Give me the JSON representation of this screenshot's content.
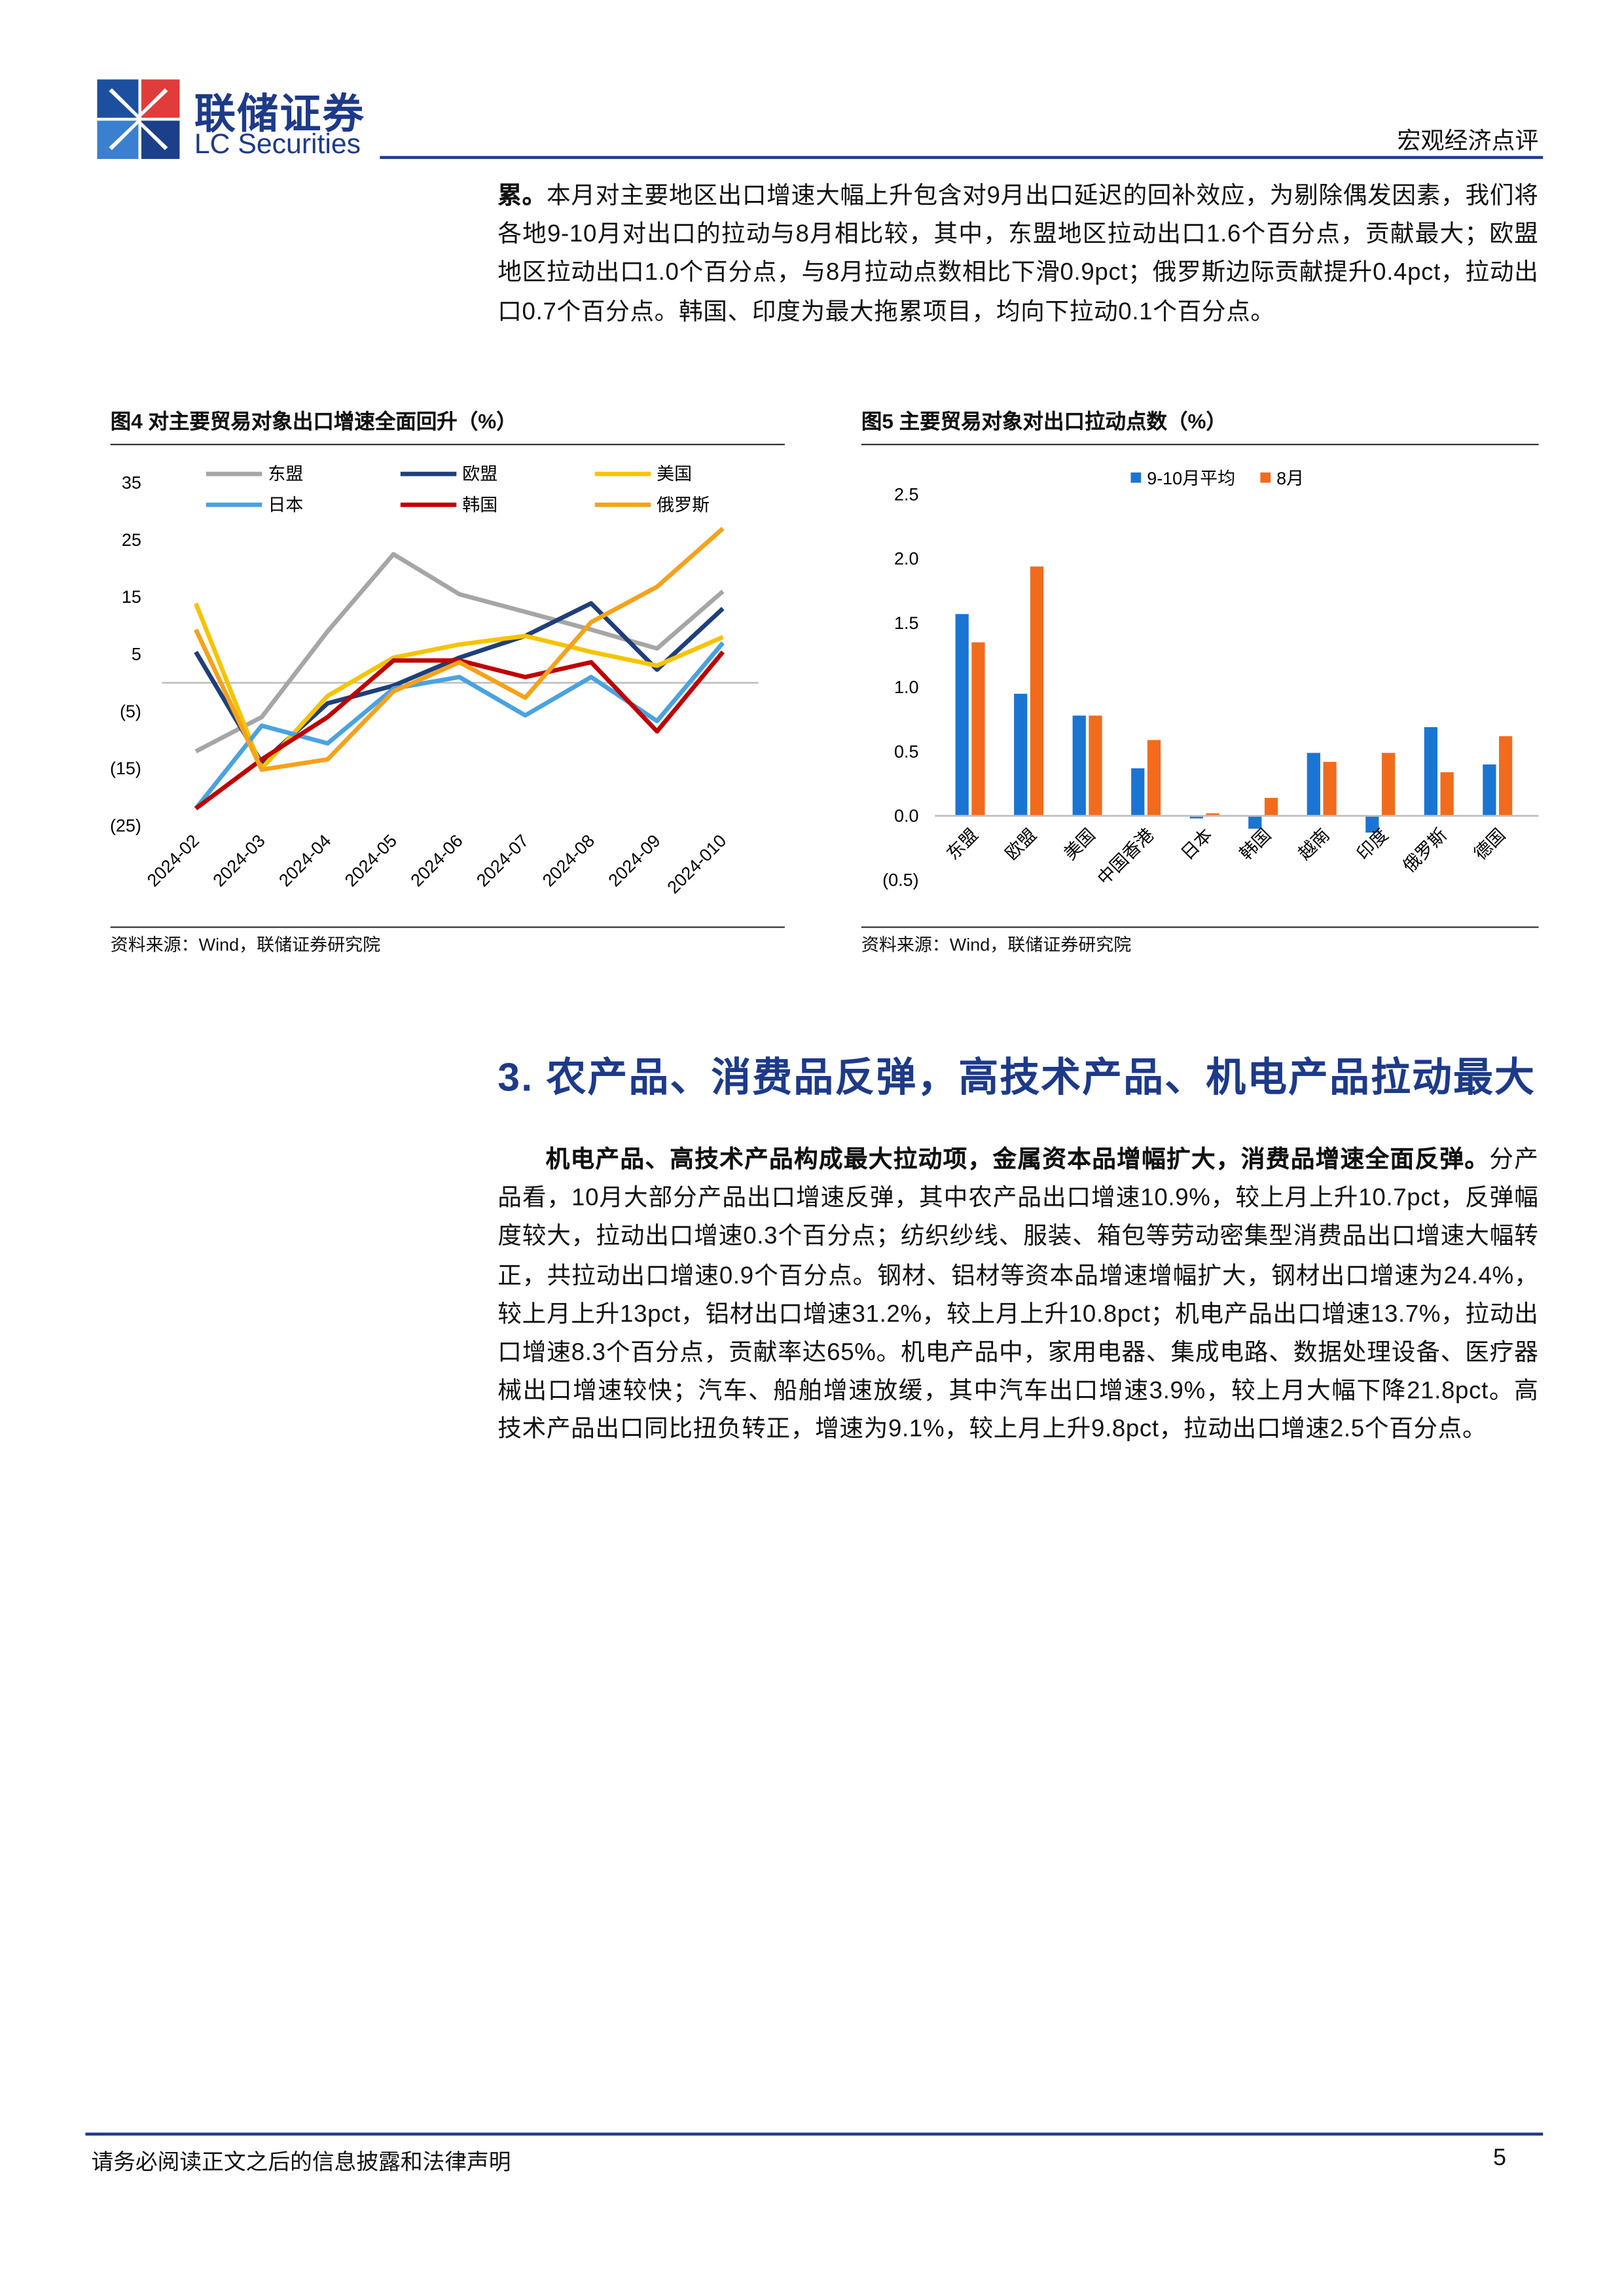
{
  "header": {
    "company_cn": "联储证券",
    "company_en": "LC Securities",
    "report_type": "宏观经济点评"
  },
  "paragraphs": [
    {
      "bold": "累。",
      "text": "本月对主要地区出口增速大幅上升包含对9月出口延迟的回补效应，为剔除偶发因素，我们将各地9-10月对出口的拉动与8月相比较，其中，东盟地区拉动出口1.6个百分点，贡献最大；欧盟地区拉动出口1.0个百分点，与8月拉动点数相比下滑0.9pct；俄罗斯边际贡献提升0.4pct，拉动出口0.7个百分点。韩国、印度为最大拖累项目，均向下拉动0.1个百分点。"
    },
    {
      "bold": "机电产品、高技术产品构成最大拉动项，金属资本品增幅扩大，消费品增速全面反弹。",
      "text": "分产品看，10月大部分产品出口增速反弹，其中农产品出口增速10.9%，较上月上升10.7pct，反弹幅度较大，拉动出口增速0.3个百分点；纺织纱线、服装、箱包等劳动密集型消费品出口增速大幅转正，共拉动出口增速0.9个百分点。钢材、铝材等资本品增速增幅扩大，钢材出口增速为24.4%，较上月上升13pct，铝材出口增速31.2%，较上月上升10.8pct；机电产品出口增速13.7%，拉动出口增速8.3个百分点，贡献率达65%。机电产品中，家用电器、集成电路、数据处理设备、医疗器械出口增速较快；汽车、船舶增速放缓，其中汽车出口增速3.9%，较上月大幅下降21.8pct。高技术产品出口同比扭负转正，增速为9.1%，较上月上升9.8pct，拉动出口增速2.5个百分点。"
    }
  ],
  "section_title": "3. 农产品、消费品反弹，高技术产品、机电产品拉动最大",
  "chart_data": [
    {
      "type": "line",
      "title": "图4  对主要贸易对象出口增速全面回升（%）",
      "source": "资料来源：Wind，联储证券研究院",
      "categories": [
        "2024-02",
        "2024-03",
        "2024-04",
        "2024-05",
        "2024-06",
        "2024-07",
        "2024-08",
        "2024-09",
        "2024-010"
      ],
      "ylim": [
        -25,
        35
      ],
      "yticks": [
        35,
        25,
        15,
        5,
        {
          "value": -5,
          "label": "(5)"
        },
        {
          "value": -15,
          "label": "(15)"
        },
        {
          "value": -25,
          "label": "(25)"
        }
      ],
      "series": [
        {
          "name": "东盟",
          "color": "#a6a6a6",
          "values": [
            -12,
            -6,
            9,
            22.5,
            15.5,
            12.4,
            9.3,
            6,
            16
          ]
        },
        {
          "name": "欧盟",
          "color": "#1f3f7a",
          "values": [
            5.4,
            -14,
            -3.6,
            -0.5,
            4.4,
            8.2,
            13.9,
            2.3,
            13
          ]
        },
        {
          "name": "美国",
          "color": "#f5c400",
          "values": [
            13.9,
            -15,
            -2.3,
            4.4,
            6.7,
            8.2,
            5.4,
            3,
            8
          ]
        },
        {
          "name": "日本",
          "color": "#4aa3df",
          "values": [
            -22,
            -7.5,
            -10.6,
            -1,
            1,
            -5.7,
            1,
            -6.7,
            7
          ]
        },
        {
          "name": "韩国",
          "color": "#c00000",
          "values": [
            -22,
            -13.4,
            -6,
            3.9,
            3.9,
            1,
            3.6,
            -8.5,
            5.4
          ]
        },
        {
          "name": "俄罗斯",
          "color": "#f5a21b",
          "values": [
            9.3,
            -15.2,
            -13.4,
            -1.5,
            3.6,
            -2.6,
            10.6,
            16.8,
            27
          ]
        }
      ]
    },
    {
      "type": "bar",
      "title": "图5  主要贸易对象对出口拉动点数（%）",
      "source": "资料来源：Wind，联储证券研究院",
      "categories": [
        "东盟",
        "欧盟",
        "美国",
        "中国香港",
        "日本",
        "韩国",
        "越南",
        "印度",
        "俄罗斯",
        "德国"
      ],
      "ylim": [
        -0.5,
        2.5
      ],
      "yticks": [
        2.5,
        {
          "value": 2,
          "label": "2.0"
        },
        1.5,
        {
          "value": 1,
          "label": "1.0"
        },
        0.5,
        {
          "value": 0,
          "label": "0.0"
        },
        {
          "value": -0.5,
          "label": "(0.5)"
        }
      ],
      "series": [
        {
          "name": "9-10月平均",
          "color": "#1a75d2",
          "values": [
            1.57,
            0.95,
            0.78,
            0.37,
            -0.02,
            -0.1,
            0.49,
            -0.13,
            0.69,
            0.4
          ]
        },
        {
          "name": "8月",
          "color": "#f26b1d",
          "values": [
            1.35,
            1.94,
            0.78,
            0.59,
            0.02,
            0.14,
            0.42,
            0.49,
            0.34,
            0.62
          ]
        }
      ]
    }
  ],
  "footer": {
    "disclaimer": "请务必阅读正文之后的信息披露和法律声明",
    "page_number": "5"
  }
}
